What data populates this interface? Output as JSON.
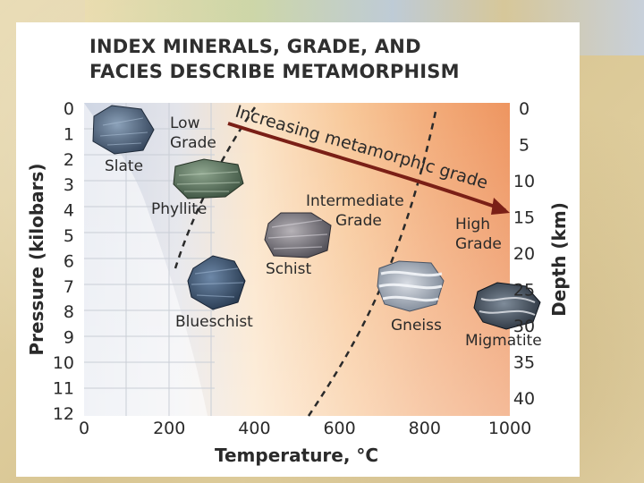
{
  "title_lines": [
    "INDEX MINERALS, GRADE, AND",
    "FACIES DESCRIBE METAMORPHISM"
  ],
  "axes": {
    "x_label": "Temperature, °C",
    "x_ticks": [
      "0",
      "200",
      "400",
      "600",
      "800",
      "1000"
    ],
    "y_left_label": "Pressure (kilobars)",
    "y_left_ticks": [
      "0",
      "1",
      "2",
      "3",
      "4",
      "5",
      "6",
      "7",
      "8",
      "9",
      "10",
      "11",
      "12"
    ],
    "y_right_label": "Depth (km)",
    "y_right_ticks": [
      "0",
      "5",
      "10",
      "15",
      "20",
      "25",
      "30",
      "35",
      "40"
    ]
  },
  "grades": {
    "low": [
      "Low",
      "Grade"
    ],
    "intermediate": [
      "Intermediate",
      "Grade"
    ],
    "high": [
      "High",
      "Grade"
    ]
  },
  "trend_arrow_label": "Increasing metamorphic grade",
  "rocks": {
    "slate": "Slate",
    "phyllite": "Phyllite",
    "schist": "Schist",
    "blueschist": "Blueschist",
    "gneiss": "Gneiss",
    "migmatite": "Migmatite"
  },
  "colors": {
    "text": "#2a2a2a",
    "low_zone": "#d4d9e6",
    "intermediate_zone": "#f7c89a",
    "high_zone": "#f19f6a",
    "trend_arrow": "#7a1f16"
  }
}
